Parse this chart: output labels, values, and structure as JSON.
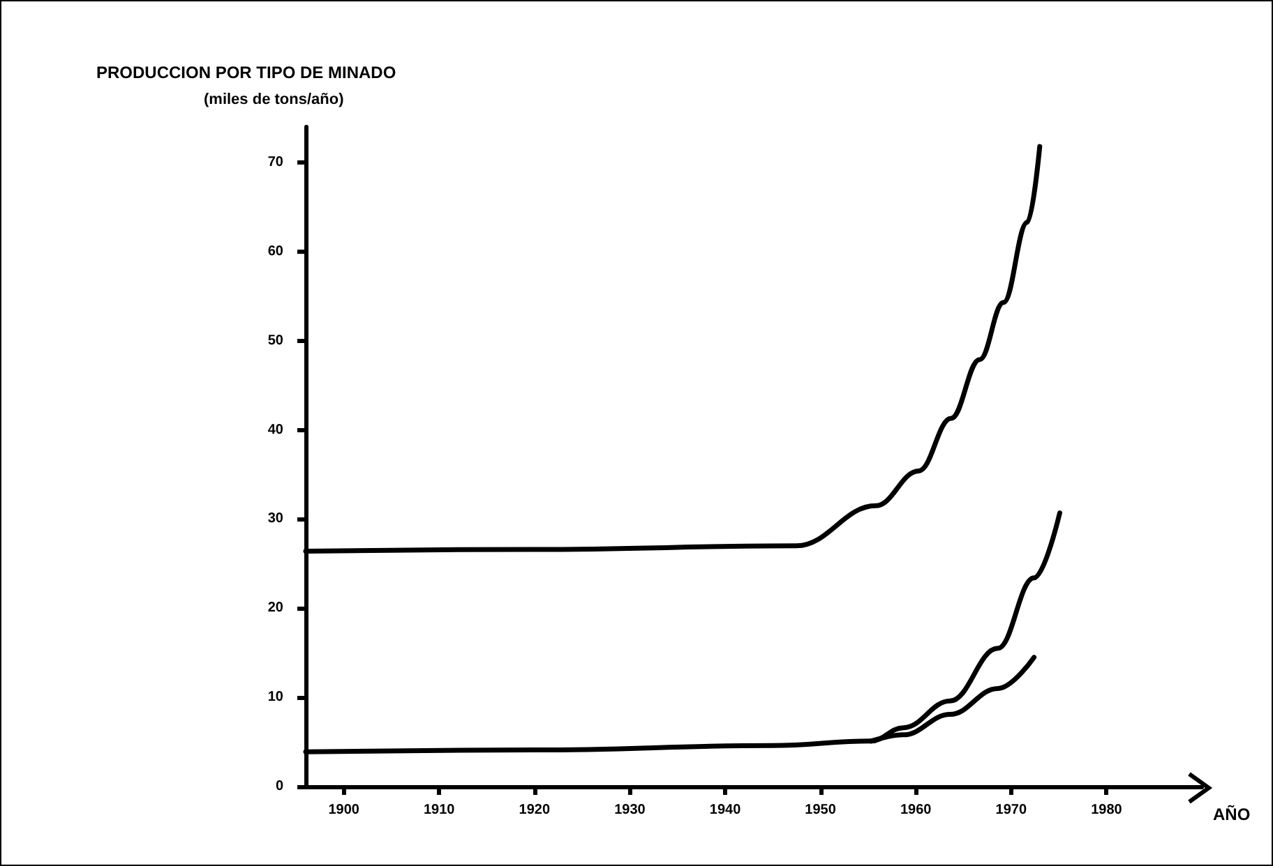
{
  "chart_data": {
    "type": "line",
    "title": "PRODUCCION POR TIPO DE MINADO",
    "ylabel": "(miles de tons/año)",
    "xlabel": "AÑO",
    "xlim": [
      1896,
      1990
    ],
    "xticks": [
      1900,
      1910,
      1920,
      1930,
      1940,
      1950,
      1960,
      1970,
      1980
    ],
    "ylim": [
      0,
      74
    ],
    "yticks": [
      0,
      10,
      20,
      30,
      40,
      50,
      60,
      70
    ],
    "grid": false,
    "marker": "none",
    "line_style": "solid",
    "series": [
      {
        "color": "#000000",
        "x": [
          1896,
          1920,
          1947.5,
          1955.8,
          1960.3,
          1963.7,
          1966.7,
          1969.2,
          1971.7,
          1973
        ],
        "values": [
          26.4,
          26.6,
          27,
          31.5,
          35.4,
          41.3,
          47.9,
          54.3,
          63.3,
          71.8
        ]
      },
      {
        "color": "#000000",
        "x": [
          1896,
          1920,
          1945,
          1955.3,
          1958.7,
          1963.6,
          1968.6,
          1972.4,
          1975.1
        ],
        "values": [
          3.9,
          4.1,
          4.6,
          5.1,
          6.6,
          9.6,
          15.5,
          23.4,
          30.7
        ]
      },
      {
        "color": "#000000",
        "x": [
          1955.3,
          1958.7,
          1963.6,
          1968.6,
          1972.4
        ],
        "values": [
          5.1,
          5.8,
          8.1,
          11,
          14.5
        ]
      }
    ]
  }
}
